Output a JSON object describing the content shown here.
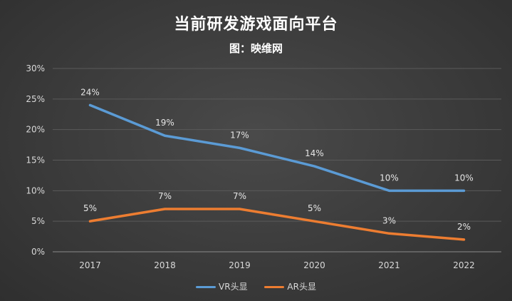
{
  "chart_data": {
    "type": "line",
    "title": "当前研发游戏面向平台",
    "subtitle": "图：映维网",
    "categories": [
      "2017",
      "2018",
      "2019",
      "2020",
      "2021",
      "2022"
    ],
    "y_tick_labels": [
      "0%",
      "5%",
      "10%",
      "15%",
      "20%",
      "25%",
      "30%"
    ],
    "ylim": [
      0,
      30
    ],
    "y_unit": "%",
    "grid": true,
    "legend_position": "bottom",
    "series": [
      {
        "name": "VR头显",
        "color": "#5b9bd5",
        "values": [
          24,
          19,
          17,
          14,
          10,
          10
        ],
        "labels": [
          "24%",
          "19%",
          "17%",
          "14%",
          "10%",
          "10%"
        ]
      },
      {
        "name": "AR头显",
        "color": "#ed7d31",
        "values": [
          5,
          7,
          7,
          5,
          3,
          2
        ],
        "labels": [
          "5%",
          "7%",
          "7%",
          "5%",
          "3%",
          "2%"
        ]
      }
    ]
  }
}
